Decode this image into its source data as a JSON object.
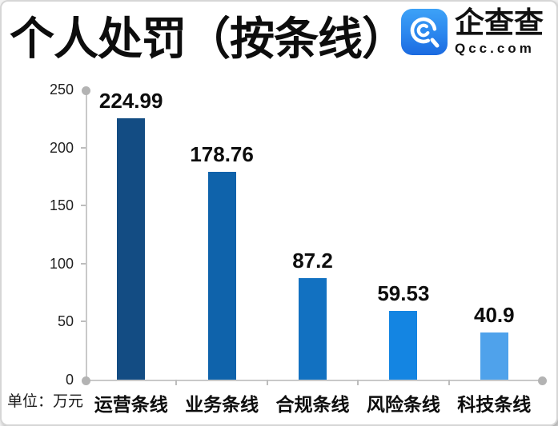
{
  "header": {
    "title": "个人处罚（按条线）",
    "logo": {
      "brand": "企查查",
      "domain": "Qcc.com",
      "icon": "qcc-magnifier-icon",
      "icon_color_top": "#3da2f7",
      "icon_color_bottom": "#1b6ae0"
    }
  },
  "chart_data": {
    "type": "bar",
    "title": "个人处罚（按条线）",
    "unit_label": "单位：万元",
    "categories": [
      "运营条线",
      "业务条线",
      "合规条线",
      "风险条线",
      "科技条线"
    ],
    "values": [
      224.99,
      178.76,
      87.2,
      59.53,
      40.9
    ],
    "value_labels": [
      "224.99",
      "178.76",
      "87.2",
      "59.53",
      "40.9"
    ],
    "bar_colors": [
      "#134c83",
      "#0f63ab",
      "#1271c1",
      "#1485e2",
      "#4fa2eb"
    ],
    "ylim": [
      0,
      250
    ],
    "yticks": [
      0,
      50,
      100,
      150,
      200,
      250
    ],
    "grid": false,
    "legend": false,
    "axis_color": "#c9c9c9",
    "marker_color": "#b3b3b3"
  }
}
